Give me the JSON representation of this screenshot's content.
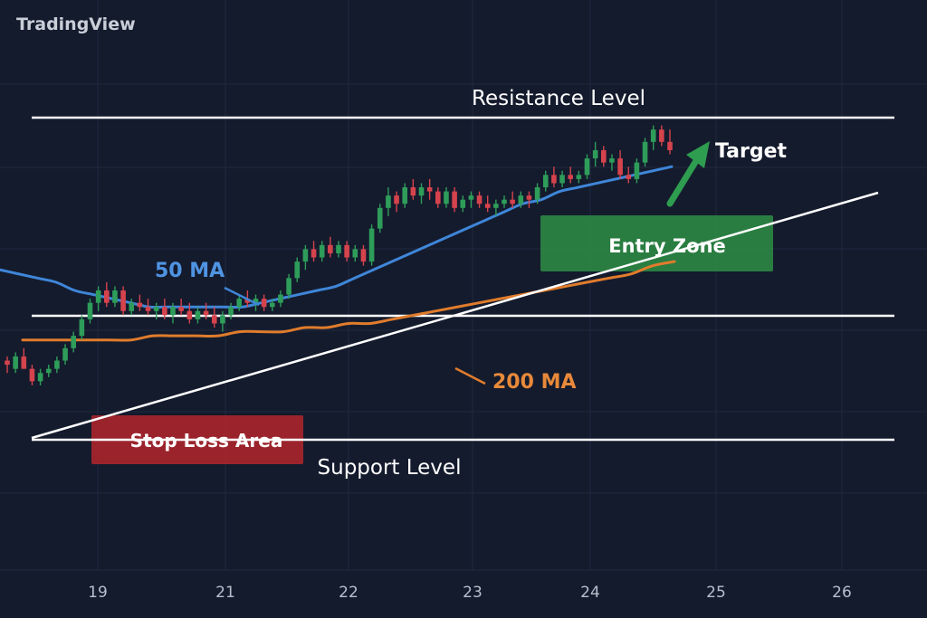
{
  "brand": "TradingView",
  "colors": {
    "background": "#141b2d",
    "grid": "#1f2940",
    "up": "#2e9d5a",
    "down": "#d5434d",
    "ma50": "#3f86d8",
    "ma200": "#e07c2c",
    "levels": "#ffffff",
    "entry_zone": "#2e8b44",
    "stop_zone": "#b3262d",
    "target_arrow": "#2e9d4f"
  },
  "annotations": {
    "resistance": "Resistance Level",
    "support": "Support Level",
    "ma50": "50 MA",
    "ma200": "200 MA",
    "entry_zone": "Entry Zone",
    "stop_loss": "Stop Loss Area",
    "target": "Target"
  },
  "chart_data": {
    "type": "candlestick",
    "x_ticks": [
      "19",
      "21",
      "22",
      "23",
      "24",
      "25",
      "26"
    ],
    "ylim": [
      0,
      100
    ],
    "grid": true,
    "levels": {
      "resistance": 90,
      "middle": 52,
      "support": 29
    },
    "candles": [
      [
        33,
        34,
        30,
        32
      ],
      [
        31,
        35,
        30,
        34
      ],
      [
        34,
        36,
        31,
        31
      ],
      [
        31,
        32,
        27,
        28
      ],
      [
        28,
        31,
        27,
        30
      ],
      [
        30,
        32,
        29,
        31
      ],
      [
        31,
        34,
        30,
        33
      ],
      [
        33,
        37,
        32,
        36
      ],
      [
        36,
        40,
        35,
        39
      ],
      [
        39,
        44,
        38,
        43
      ],
      [
        43,
        48,
        42,
        47
      ],
      [
        47,
        51,
        45,
        50
      ],
      [
        50,
        52,
        46,
        47
      ],
      [
        47,
        51,
        46,
        50
      ],
      [
        50,
        51,
        44,
        45
      ],
      [
        45,
        48,
        44,
        47
      ],
      [
        47,
        49,
        45,
        46
      ],
      [
        46,
        48,
        44,
        45
      ],
      [
        45,
        47,
        43,
        46
      ],
      [
        46,
        48,
        43,
        44
      ],
      [
        44,
        47,
        42,
        46
      ],
      [
        46,
        48,
        44,
        45
      ],
      [
        45,
        47,
        42,
        43
      ],
      [
        43,
        46,
        42,
        45
      ],
      [
        45,
        47,
        43,
        44
      ],
      [
        44,
        46,
        41,
        42
      ],
      [
        42,
        45,
        40,
        44
      ],
      [
        44,
        47,
        43,
        46
      ],
      [
        46,
        49,
        45,
        48
      ],
      [
        48,
        50,
        46,
        47
      ],
      [
        47,
        49,
        45,
        48
      ],
      [
        48,
        49,
        45,
        46
      ],
      [
        46,
        48,
        45,
        47
      ],
      [
        47,
        50,
        46,
        49
      ],
      [
        49,
        54,
        48,
        53
      ],
      [
        53,
        58,
        52,
        57
      ],
      [
        57,
        61,
        55,
        60
      ],
      [
        60,
        62,
        57,
        58
      ],
      [
        58,
        62,
        57,
        61
      ],
      [
        61,
        63,
        58,
        59
      ],
      [
        59,
        62,
        58,
        61
      ],
      [
        61,
        62,
        57,
        58
      ],
      [
        58,
        61,
        57,
        60
      ],
      [
        60,
        61,
        56,
        57
      ],
      [
        57,
        66,
        56,
        65
      ],
      [
        65,
        71,
        64,
        70
      ],
      [
        70,
        75,
        68,
        73
      ],
      [
        73,
        74,
        69,
        71
      ],
      [
        71,
        76,
        70,
        75
      ],
      [
        75,
        77,
        72,
        73
      ],
      [
        73,
        76,
        71,
        75
      ],
      [
        75,
        77,
        72,
        74
      ],
      [
        74,
        75,
        70,
        71
      ],
      [
        71,
        75,
        70,
        74
      ],
      [
        74,
        75,
        69,
        70
      ],
      [
        70,
        73,
        69,
        72
      ],
      [
        72,
        74,
        70,
        73
      ],
      [
        73,
        74,
        70,
        71
      ],
      [
        71,
        73,
        69,
        70
      ],
      [
        70,
        72,
        68,
        71
      ],
      [
        71,
        73,
        70,
        72
      ],
      [
        72,
        74,
        70,
        71
      ],
      [
        71,
        74,
        70,
        73
      ],
      [
        73,
        74,
        70,
        72
      ],
      [
        72,
        76,
        71,
        75
      ],
      [
        75,
        79,
        74,
        78
      ],
      [
        78,
        80,
        75,
        76
      ],
      [
        76,
        79,
        75,
        78
      ],
      [
        78,
        80,
        76,
        77
      ],
      [
        77,
        79,
        76,
        78
      ],
      [
        78,
        83,
        77,
        82
      ],
      [
        82,
        86,
        80,
        84
      ],
      [
        84,
        85,
        80,
        81
      ],
      [
        81,
        83,
        79,
        82
      ],
      [
        82,
        84,
        77,
        78
      ],
      [
        78,
        80,
        76,
        77
      ],
      [
        77,
        82,
        76,
        81
      ],
      [
        81,
        87,
        80,
        86
      ],
      [
        86,
        90,
        84,
        89
      ],
      [
        89,
        90,
        85,
        86
      ],
      [
        86,
        89,
        83,
        84
      ]
    ],
    "ma50": [
      55,
      54,
      53,
      52,
      50,
      49,
      48,
      47,
      46,
      46,
      46,
      46,
      46,
      46,
      47,
      48,
      49,
      50,
      51,
      53,
      55,
      57,
      59,
      61,
      63,
      65,
      67,
      69,
      71,
      72,
      74,
      75,
      76,
      77,
      78,
      79,
      80
    ],
    "ma200": [
      38,
      38,
      38,
      38,
      38,
      38,
      39,
      39,
      39,
      39,
      40,
      40,
      40,
      41,
      41,
      42,
      42,
      43,
      44,
      45,
      46,
      47,
      48,
      49,
      50,
      51,
      52,
      53,
      54,
      56,
      57
    ],
    "trendline": [
      [
        0,
        29
      ],
      [
        100,
        88
      ]
    ],
    "target_arrow": [
      [
        79,
        76
      ],
      [
        85,
        85
      ]
    ]
  }
}
